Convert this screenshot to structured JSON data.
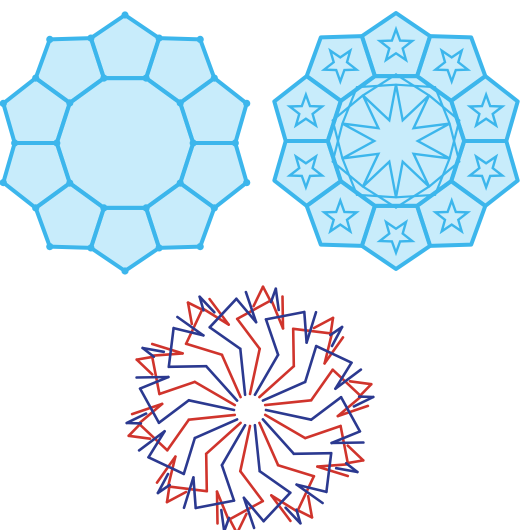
{
  "figure": {
    "panels": [
      {
        "id": "tiling",
        "shape": "decagon with ten pentagon petals",
        "fill": "#c8ecfb",
        "stroke": "#3cb6ec"
      },
      {
        "id": "overlay",
        "shape": "tiling with interlaced star pattern",
        "fill": "#c8ecfb",
        "stroke": "#3cb6ec"
      },
      {
        "id": "girih",
        "shape": "interlaced girih star pattern",
        "colors": [
          "#d0342c",
          "#2b3990"
        ]
      }
    ],
    "symmetry_order": 10
  }
}
